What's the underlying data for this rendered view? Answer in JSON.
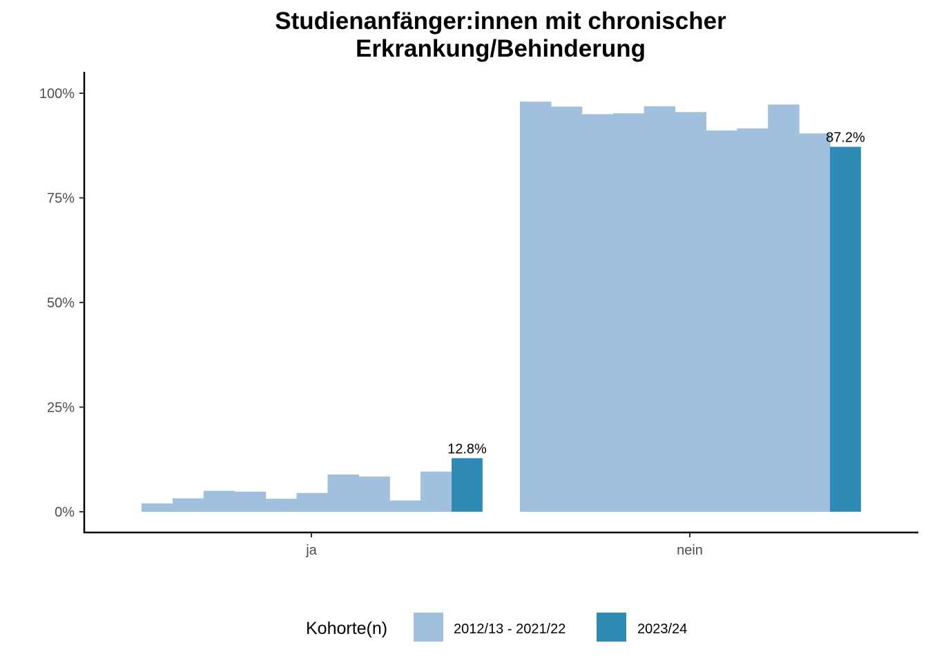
{
  "colors": {
    "historical": "#a0c0dd",
    "current": "#2e8bb6",
    "axis": "#000000",
    "tick_text": "#4d4d4d"
  },
  "chart_data": {
    "type": "bar",
    "title_lines": [
      "Studienanfänger:innen mit chronischer",
      "Erkrankung/Behinderung"
    ],
    "categories": [
      "ja",
      "nein"
    ],
    "y_ticks": [
      "0%",
      "25%",
      "50%",
      "75%",
      "100%"
    ],
    "ylim": [
      0,
      100
    ],
    "grid": false,
    "legend_position": "bottom",
    "legend": {
      "title": "Kohorte(n)",
      "items": [
        {
          "label": "2012/13 - 2021/22",
          "color_key": "historical"
        },
        {
          "label": "2023/24",
          "color_key": "current"
        }
      ]
    },
    "historical_values": {
      "ja": [
        2.0,
        3.2,
        5.0,
        4.8,
        3.1,
        4.5,
        8.9,
        8.4,
        2.7,
        9.6
      ],
      "nein": [
        98.0,
        96.8,
        95.0,
        95.2,
        96.9,
        95.5,
        91.1,
        91.6,
        97.3,
        90.4
      ]
    },
    "current_values": {
      "ja": 12.8,
      "nein": 87.2
    },
    "current_labels": {
      "ja": "12.8%",
      "nein": "87.2%"
    }
  }
}
